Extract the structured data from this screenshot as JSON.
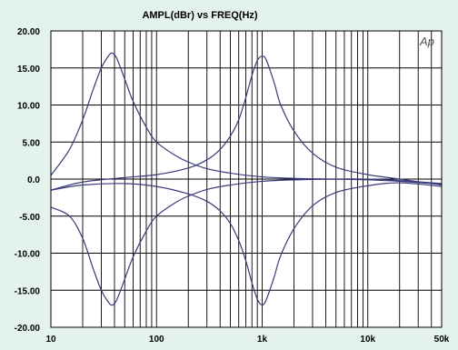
{
  "chart_data": {
    "type": "line",
    "title": "AMPL(dBr) vs FREQ(Hz)",
    "xlabel": "",
    "ylabel": "",
    "watermark": "Ap",
    "x_scale": "log",
    "xlim": [
      10,
      50000
    ],
    "ylim": [
      -20,
      20
    ],
    "grid": true,
    "x_tick_labels": [
      {
        "value": 10,
        "label": "10"
      },
      {
        "value": 100,
        "label": "100"
      },
      {
        "value": 1000,
        "label": "1k"
      },
      {
        "value": 10000,
        "label": "10k"
      },
      {
        "value": 50000,
        "label": "50k"
      }
    ],
    "y_tick_labels": [
      {
        "value": 20,
        "label": "20.00"
      },
      {
        "value": 15,
        "label": "15.00"
      },
      {
        "value": 10,
        "label": "10.00"
      },
      {
        "value": 5,
        "label": "5.00"
      },
      {
        "value": 0,
        "label": "0.0"
      },
      {
        "value": -5,
        "label": "-5.00"
      },
      {
        "value": -10,
        "label": "-10.00"
      },
      {
        "value": -15,
        "label": "-15.00"
      },
      {
        "value": -20,
        "label": "-20.00"
      }
    ],
    "series": [
      {
        "color": "#3a3a7a",
        "x": [
          10,
          15,
          20,
          25,
          30,
          35,
          38,
          42,
          50,
          60,
          80,
          100,
          150,
          200,
          300,
          500,
          1000,
          2000,
          5000,
          10000,
          20000,
          50000
        ],
        "y": [
          0.5,
          4,
          8,
          12,
          15,
          16.6,
          17,
          16.3,
          13.5,
          10.5,
          7,
          5,
          3.2,
          2.3,
          1.4,
          0.8,
          0.3,
          0.1,
          0,
          -0.1,
          -0.3,
          -0.7
        ]
      },
      {
        "color": "#3a3a7a",
        "x": [
          10,
          15,
          20,
          25,
          30,
          35,
          38,
          42,
          50,
          60,
          80,
          100,
          150,
          200,
          300,
          500,
          1000,
          2000,
          5000,
          10000,
          20000,
          50000
        ],
        "y": [
          -3.8,
          -5,
          -8,
          -12,
          -15,
          -16.6,
          -17,
          -16.3,
          -13.5,
          -10.5,
          -7,
          -5,
          -3.2,
          -2.3,
          -1.4,
          -0.8,
          -0.3,
          -0.1,
          0,
          0,
          -0.2,
          -0.6
        ]
      },
      {
        "color": "#3a3a7a",
        "x": [
          10,
          20,
          50,
          100,
          200,
          300,
          400,
          500,
          600,
          700,
          800,
          900,
          1000,
          1100,
          1300,
          1500,
          2000,
          3000,
          5000,
          10000,
          20000,
          50000
        ],
        "y": [
          -1.5,
          -0.4,
          0.2,
          0.6,
          1.5,
          2.6,
          4,
          5.8,
          8,
          11,
          14,
          16,
          16.6,
          16,
          13,
          10,
          6.5,
          3.5,
          1.6,
          0.6,
          0,
          -0.8
        ]
      },
      {
        "color": "#3a3a7a",
        "x": [
          10,
          20,
          50,
          100,
          200,
          300,
          400,
          500,
          600,
          700,
          800,
          900,
          1000,
          1100,
          1300,
          1500,
          2000,
          3000,
          5000,
          10000,
          20000,
          50000
        ],
        "y": [
          -1.5,
          -0.8,
          -0.6,
          -1,
          -2,
          -3,
          -4.3,
          -6,
          -8.3,
          -11,
          -14,
          -16.2,
          -17,
          -16.2,
          -13.2,
          -10.3,
          -6.7,
          -3.6,
          -1.8,
          -0.9,
          -0.5,
          -1
        ]
      }
    ]
  }
}
